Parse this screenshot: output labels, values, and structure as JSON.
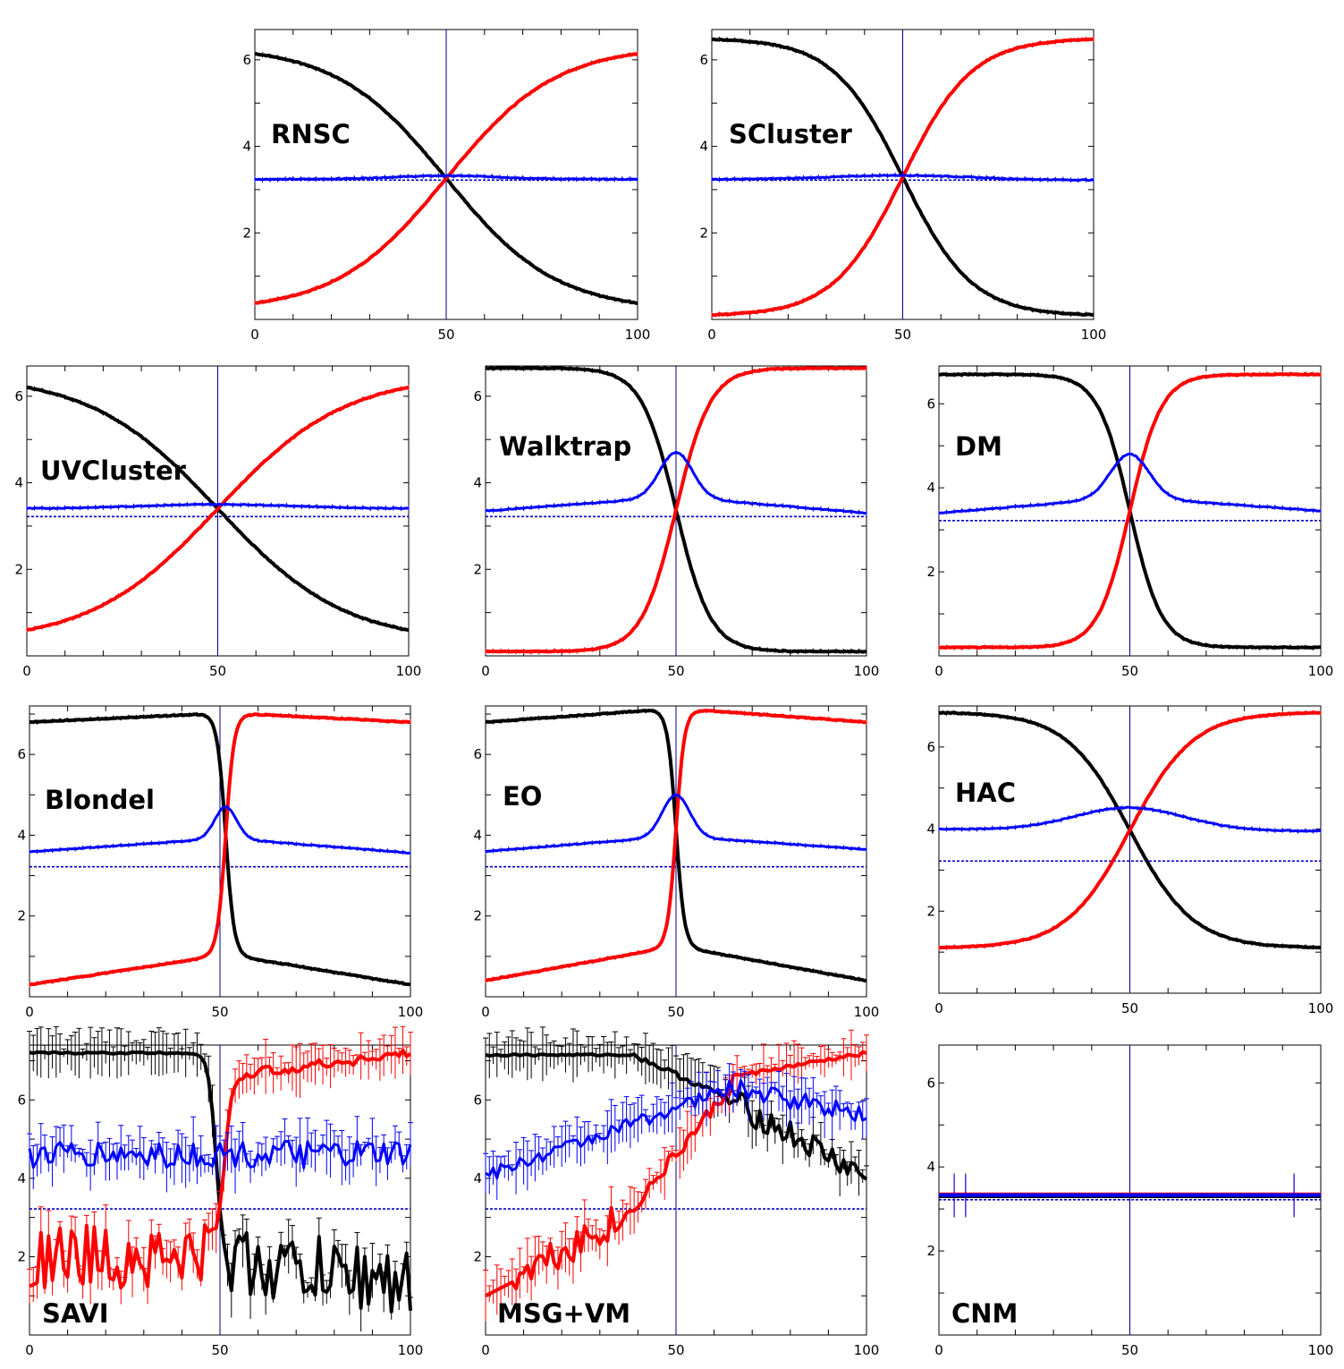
{
  "colors": {
    "black_series": "#000000",
    "red_series": "#ff0000",
    "blue_series": "#0000ff",
    "reference": "#0000cc",
    "midline": "#000080"
  },
  "chart_data": [
    {
      "type": "line",
      "title": "RNSC",
      "xlim": [
        0,
        100
      ],
      "ylim": [
        0,
        6.7
      ],
      "xticks": [
        0,
        50,
        100
      ],
      "yticks": [
        2,
        4,
        6
      ],
      "ref_y": 3.22,
      "mid_x": 50,
      "series": [
        {
          "color": "#000000",
          "style": "sigmoid",
          "start": 6.32,
          "end": 0.2,
          "steep": 0.07,
          "skew": 1.5
        },
        {
          "color": "#ff0000",
          "style": "sigmoid",
          "start": 0.2,
          "end": 6.32,
          "steep": 0.07,
          "skew": 1.5
        },
        {
          "color": "#0000ff",
          "style": "flat",
          "start": 3.24,
          "peak": 3.32,
          "end": 3.24,
          "width": 20
        }
      ]
    },
    {
      "type": "line",
      "title": "SCluster",
      "xlim": [
        0,
        100
      ],
      "ylim": [
        0,
        6.7
      ],
      "xticks": [
        0,
        50,
        100
      ],
      "yticks": [
        2,
        4,
        6
      ],
      "ref_y": 3.22,
      "mid_x": 50,
      "series": [
        {
          "color": "#000000",
          "style": "sigmoid",
          "start": 6.5,
          "end": 0.08,
          "steep": 0.11
        },
        {
          "color": "#ff0000",
          "style": "sigmoid",
          "start": 0.08,
          "end": 6.5,
          "steep": 0.11
        },
        {
          "color": "#0000ff",
          "style": "flat",
          "start": 3.24,
          "peak": 3.34,
          "end": 3.22,
          "width": 25
        }
      ]
    },
    {
      "type": "line",
      "title": "UVCluster",
      "xlim": [
        0,
        100
      ],
      "ylim": [
        0,
        6.7
      ],
      "xticks": [
        0,
        50,
        100
      ],
      "yticks": [
        2,
        4,
        6
      ],
      "ref_y": 3.22,
      "mid_x": 50,
      "series": [
        {
          "color": "#000000",
          "style": "sigmoid",
          "start": 6.5,
          "end": 0.3,
          "steep": 0.06
        },
        {
          "color": "#ff0000",
          "style": "sigmoid",
          "start": 0.3,
          "end": 6.5,
          "steep": 0.06
        },
        {
          "color": "#0000ff",
          "style": "flat",
          "start": 3.4,
          "peak": 3.5,
          "end": 3.4,
          "width": 30
        }
      ]
    },
    {
      "type": "line",
      "title": "Walktrap",
      "xlim": [
        0,
        100
      ],
      "ylim": [
        0,
        6.7
      ],
      "xticks": [
        0,
        50,
        100
      ],
      "yticks": [
        2,
        4,
        6
      ],
      "ref_y": 3.22,
      "mid_x": 50,
      "series": [
        {
          "color": "#000000",
          "style": "sigmoid",
          "start": 6.65,
          "end": 0.1,
          "steep": 0.22
        },
        {
          "color": "#ff0000",
          "style": "sigmoid",
          "start": 0.1,
          "end": 6.65,
          "steep": 0.22
        },
        {
          "color": "#0000ff",
          "style": "peak",
          "start": 3.35,
          "peak": 4.7,
          "end": 3.3,
          "width": 6
        }
      ]
    },
    {
      "type": "line",
      "title": "DM",
      "xlim": [
        0,
        100
      ],
      "ylim": [
        0,
        6.9
      ],
      "xticks": [
        0,
        50,
        100
      ],
      "yticks": [
        2,
        4,
        6
      ],
      "ref_y": 3.22,
      "mid_x": 50,
      "series": [
        {
          "color": "#000000",
          "style": "sigmoid",
          "start": 6.7,
          "end": 0.2,
          "steep": 0.24
        },
        {
          "color": "#ff0000",
          "style": "sigmoid",
          "start": 0.2,
          "end": 6.7,
          "steep": 0.24
        },
        {
          "color": "#0000ff",
          "style": "peak",
          "start": 3.4,
          "peak": 4.8,
          "end": 3.45,
          "width": 7
        }
      ]
    },
    {
      "type": "line",
      "title": "Blondel",
      "xlim": [
        0,
        100
      ],
      "ylim": [
        0,
        7.2
      ],
      "xticks": [
        0,
        50,
        100
      ],
      "yticks": [
        2,
        4,
        6
      ],
      "ref_y": 3.22,
      "mid_x": 50,
      "series": [
        {
          "color": "#000000",
          "style": "sharp",
          "start": 6.8,
          "end": 0.3,
          "plateau": 7.0,
          "low": 1.0,
          "center": 51.5
        },
        {
          "color": "#ff0000",
          "style": "sharp",
          "start": 0.3,
          "end": 6.8,
          "plateau": 7.0,
          "low": 1.0,
          "center": 51.5,
          "rising": true
        },
        {
          "color": "#0000ff",
          "style": "peak",
          "start": 3.6,
          "peak": 4.7,
          "end": 3.55,
          "width": 4,
          "center": 51.5
        }
      ]
    },
    {
      "type": "line",
      "title": "EO",
      "xlim": [
        0,
        100
      ],
      "ylim": [
        0,
        7.2
      ],
      "xticks": [
        0,
        50,
        100
      ],
      "yticks": [
        2,
        4,
        6
      ],
      "ref_y": 3.22,
      "mid_x": 50,
      "series": [
        {
          "color": "#000000",
          "style": "sharp",
          "start": 6.8,
          "end": 0.4,
          "plateau": 7.1,
          "low": 1.2,
          "center": 50
        },
        {
          "color": "#ff0000",
          "style": "sharp",
          "start": 0.4,
          "end": 6.8,
          "plateau": 7.1,
          "low": 1.2,
          "center": 50,
          "rising": true
        },
        {
          "color": "#0000ff",
          "style": "peak",
          "start": 3.6,
          "peak": 5.0,
          "end": 3.65,
          "width": 5,
          "center": 50
        }
      ]
    },
    {
      "type": "line",
      "title": "HAC",
      "xlim": [
        0,
        100
      ],
      "ylim": [
        0,
        7.0
      ],
      "xticks": [
        0,
        50,
        100
      ],
      "yticks": [
        2,
        4,
        6
      ],
      "ref_y": 3.22,
      "mid_x": 50,
      "series": [
        {
          "color": "#000000",
          "style": "sigmoid",
          "start": 6.85,
          "end": 1.1,
          "steep": 0.12
        },
        {
          "color": "#ff0000",
          "style": "sigmoid",
          "start": 1.1,
          "end": 6.85,
          "steep": 0.12
        },
        {
          "color": "#0000ff",
          "style": "flat",
          "start": 4.0,
          "peak": 4.55,
          "end": 3.95,
          "width": 20
        }
      ]
    },
    {
      "type": "line",
      "title": "SAVI",
      "xlim": [
        0,
        100
      ],
      "ylim": [
        0,
        7.4
      ],
      "xticks": [
        0,
        50,
        100
      ],
      "yticks": [
        2,
        4,
        6
      ],
      "ref_y": 3.22,
      "mid_x": 50,
      "series": [
        {
          "color": "#000000",
          "style": "noisy_drop",
          "start": 7.2,
          "end": 1.4,
          "center": 49,
          "noise": 0.9
        },
        {
          "color": "#ff0000",
          "style": "noisy_rise",
          "start": 2.0,
          "end": 7.2,
          "center": 51,
          "noise": 0.7
        },
        {
          "color": "#0000ff",
          "style": "noisy_flat",
          "start": 4.6,
          "end": 4.5,
          "noise": 0.35
        }
      ]
    },
    {
      "type": "line",
      "title": "MSG+VM",
      "xlim": [
        0,
        100
      ],
      "ylim": [
        0,
        7.4
      ],
      "xticks": [
        0,
        50,
        100
      ],
      "yticks": [
        2,
        4,
        6
      ],
      "ref_y": 3.22,
      "mid_x": 50,
      "series": [
        {
          "color": "#000000",
          "style": "msg_black",
          "start": 7.15,
          "end": 4.0
        },
        {
          "color": "#ff0000",
          "style": "msg_red",
          "start": 1.0,
          "end": 7.2
        },
        {
          "color": "#0000ff",
          "style": "msg_blue",
          "start": 4.05,
          "end": 5.6
        }
      ]
    },
    {
      "type": "line",
      "title": "CNM",
      "xlim": [
        0,
        100
      ],
      "ylim": [
        0,
        6.9
      ],
      "xticks": [
        0,
        50,
        100
      ],
      "yticks": [
        2,
        4,
        6
      ],
      "ref_y": 3.22,
      "mid_x": 50,
      "series": [
        {
          "color": "#000000",
          "style": "cnm",
          "start": 3.3,
          "end": 3.3
        },
        {
          "color": "#ff0000",
          "style": "cnm",
          "start": 3.35,
          "end": 3.35
        },
        {
          "color": "#0000ff",
          "style": "cnm",
          "start": 3.33,
          "end": 3.33
        }
      ]
    }
  ]
}
